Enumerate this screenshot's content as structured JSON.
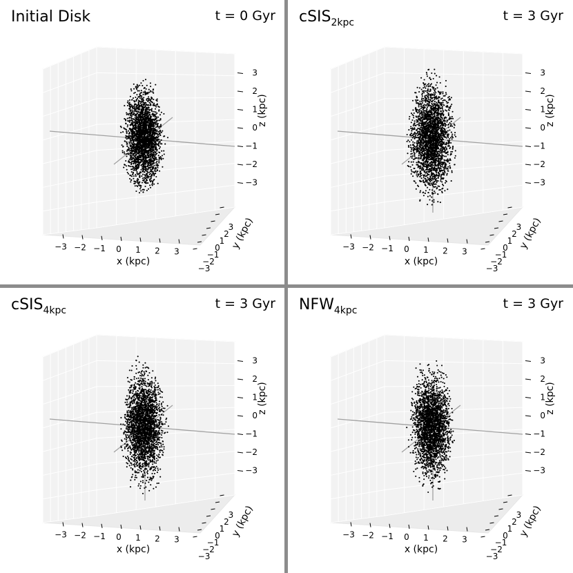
{
  "chart_data": [
    {
      "type": "scatter",
      "title": "Initial Disk",
      "title_sub": "",
      "time_label": "t = 0 Gyr",
      "xlabel": "x (kpc)",
      "ylabel": "y (kpc)",
      "zlabel": "z (kpc)",
      "x_ticks": [
        "−3",
        "−2",
        "−1",
        "0",
        "1",
        "2",
        "3"
      ],
      "y_ticks": [
        "−3",
        "−2",
        "−1",
        "0",
        "1",
        "2",
        "3"
      ],
      "z_ticks": [
        "−3",
        "−2",
        "−1",
        "0",
        "1",
        "2",
        "3"
      ],
      "xlim": [
        -3.5,
        3.5
      ],
      "ylim": [
        -3.5,
        3.5
      ],
      "zlim": [
        -3.5,
        3.5
      ],
      "distribution": {
        "sigma_x": 0.42,
        "sigma_z": 1.18,
        "truncation_x": 1.1,
        "truncation_z": 3.3,
        "n_points": 2600
      },
      "z_axis_visible_below": false
    },
    {
      "type": "scatter",
      "title": "cSIS",
      "title_sub": "2kpc",
      "time_label": "t = 3 Gyr",
      "xlabel": "x (kpc)",
      "ylabel": "y (kpc)",
      "zlabel": "z (kpc)",
      "x_ticks": [
        "−3",
        "−2",
        "−1",
        "0",
        "1",
        "2",
        "3"
      ],
      "y_ticks": [
        "−3",
        "−2",
        "−1",
        "0",
        "1",
        "2",
        "3"
      ],
      "z_ticks": [
        "−3",
        "−2",
        "−1",
        "0",
        "1",
        "2",
        "3"
      ],
      "xlim": [
        -3.5,
        3.5
      ],
      "ylim": [
        -3.5,
        3.5
      ],
      "zlim": [
        -3.5,
        3.5
      ],
      "distribution": {
        "sigma_x": 0.48,
        "sigma_z": 1.35,
        "truncation_x": 1.25,
        "truncation_z": 3.8,
        "n_points": 2600
      },
      "z_axis_visible_below": true
    },
    {
      "type": "scatter",
      "title": "cSIS",
      "title_sub": "4kpc",
      "time_label": "t = 3 Gyr",
      "xlabel": "x (kpc)",
      "ylabel": "y (kpc)",
      "zlabel": "z (kpc)",
      "x_ticks": [
        "−3",
        "−2",
        "−1",
        "0",
        "1",
        "2",
        "3"
      ],
      "y_ticks": [
        "−3",
        "−2",
        "−1",
        "0",
        "1",
        "2",
        "3"
      ],
      "z_ticks": [
        "−3",
        "−2",
        "−1",
        "0",
        "1",
        "2",
        "3"
      ],
      "xlim": [
        -3.5,
        3.5
      ],
      "ylim": [
        -3.5,
        3.5
      ],
      "zlim": [
        -3.5,
        3.5
      ],
      "distribution": {
        "sigma_x": 0.45,
        "sigma_z": 1.3,
        "truncation_x": 1.15,
        "truncation_z": 3.9,
        "n_points": 2600
      },
      "z_axis_visible_below": true
    },
    {
      "type": "scatter",
      "title": "NFW",
      "title_sub": "4kpc",
      "time_label": "t = 3 Gyr",
      "xlabel": "x (kpc)",
      "ylabel": "y (kpc)",
      "zlabel": "z (kpc)",
      "x_ticks": [
        "−3",
        "−2",
        "−1",
        "0",
        "1",
        "2",
        "3"
      ],
      "y_ticks": [
        "−3",
        "−2",
        "−1",
        "0",
        "1",
        "2",
        "3"
      ],
      "z_ticks": [
        "−3",
        "−2",
        "−1",
        "0",
        "1",
        "2",
        "3"
      ],
      "xlim": [
        -3.5,
        3.5
      ],
      "ylim": [
        -3.5,
        3.5
      ],
      "zlim": [
        -3.5,
        3.5
      ],
      "distribution": {
        "sigma_x": 0.45,
        "sigma_z": 1.3,
        "truncation_x": 1.15,
        "truncation_z": 3.8,
        "n_points": 2600
      },
      "z_axis_visible_below": true
    }
  ],
  "colors": {
    "points": "#000000",
    "pane": "#f2f2f2",
    "grid": "#ffffff",
    "axis_line": "#a0a0a0",
    "divider": "#8c8c8c"
  }
}
